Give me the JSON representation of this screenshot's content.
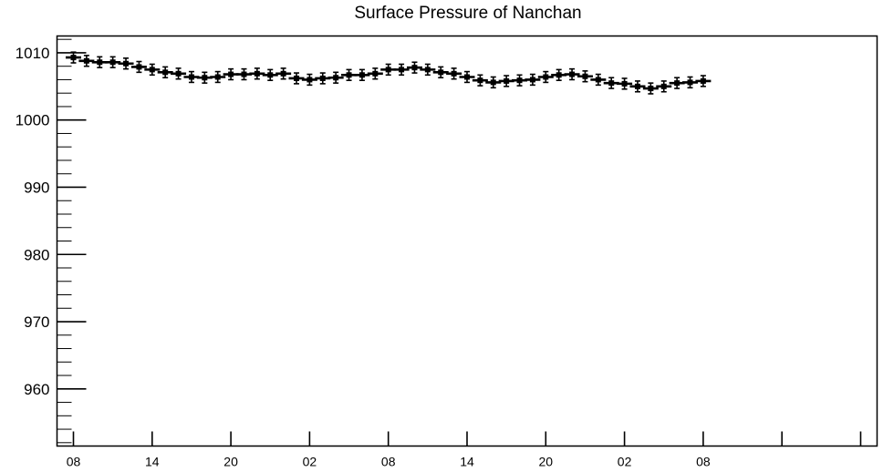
{
  "colors": {
    "background": "#ffffff",
    "axis": "#000000",
    "series": "#000000"
  },
  "chart_data": {
    "type": "scatter",
    "title": "Surface Pressure of Nanchan",
    "xlabel": "",
    "ylabel": "",
    "grid": false,
    "legend": "none",
    "ylim": [
      951.5,
      1012.5
    ],
    "yticks": [
      960,
      970,
      980,
      990,
      1000,
      1010
    ],
    "ytick_labels": [
      "960",
      "970",
      "980",
      "990",
      "1000",
      "1010"
    ],
    "y_minor_step": 2,
    "x_hours": [
      0,
      60
    ],
    "xticks": [
      0,
      6,
      12,
      18,
      24,
      30,
      36,
      42,
      48,
      54,
      60
    ],
    "xtick_labels": [
      "08",
      "14",
      "20",
      "02",
      "08",
      "14",
      "20",
      "02",
      "08"
    ],
    "xtick_label_hours": [
      0,
      6,
      12,
      18,
      24,
      30,
      36,
      42,
      48
    ],
    "error_bar": 0.8,
    "series": [
      {
        "x": [
          0,
          1,
          2,
          3,
          4,
          5,
          6,
          7,
          8,
          9,
          10,
          11,
          12,
          13,
          14,
          15,
          16,
          17,
          18,
          19,
          20,
          21,
          22,
          23,
          24,
          25,
          26,
          27,
          28,
          29,
          30,
          31,
          32,
          33,
          34,
          35,
          36,
          37,
          38,
          39,
          40,
          41,
          42,
          43,
          44,
          45,
          46,
          47,
          48
        ],
        "values": [
          1009.3,
          1008.8,
          1008.6,
          1008.6,
          1008.4,
          1007.9,
          1007.5,
          1007.1,
          1006.9,
          1006.4,
          1006.3,
          1006.4,
          1006.8,
          1006.8,
          1006.9,
          1006.7,
          1006.9,
          1006.2,
          1006.0,
          1006.2,
          1006.3,
          1006.7,
          1006.7,
          1006.9,
          1007.5,
          1007.5,
          1007.8,
          1007.5,
          1007.1,
          1006.9,
          1006.4,
          1005.9,
          1005.6,
          1005.8,
          1005.9,
          1006.0,
          1006.4,
          1006.7,
          1006.8,
          1006.5,
          1006.0,
          1005.5,
          1005.4,
          1005.0,
          1004.7,
          1005.0,
          1005.5,
          1005.6,
          1005.8
        ]
      }
    ]
  }
}
